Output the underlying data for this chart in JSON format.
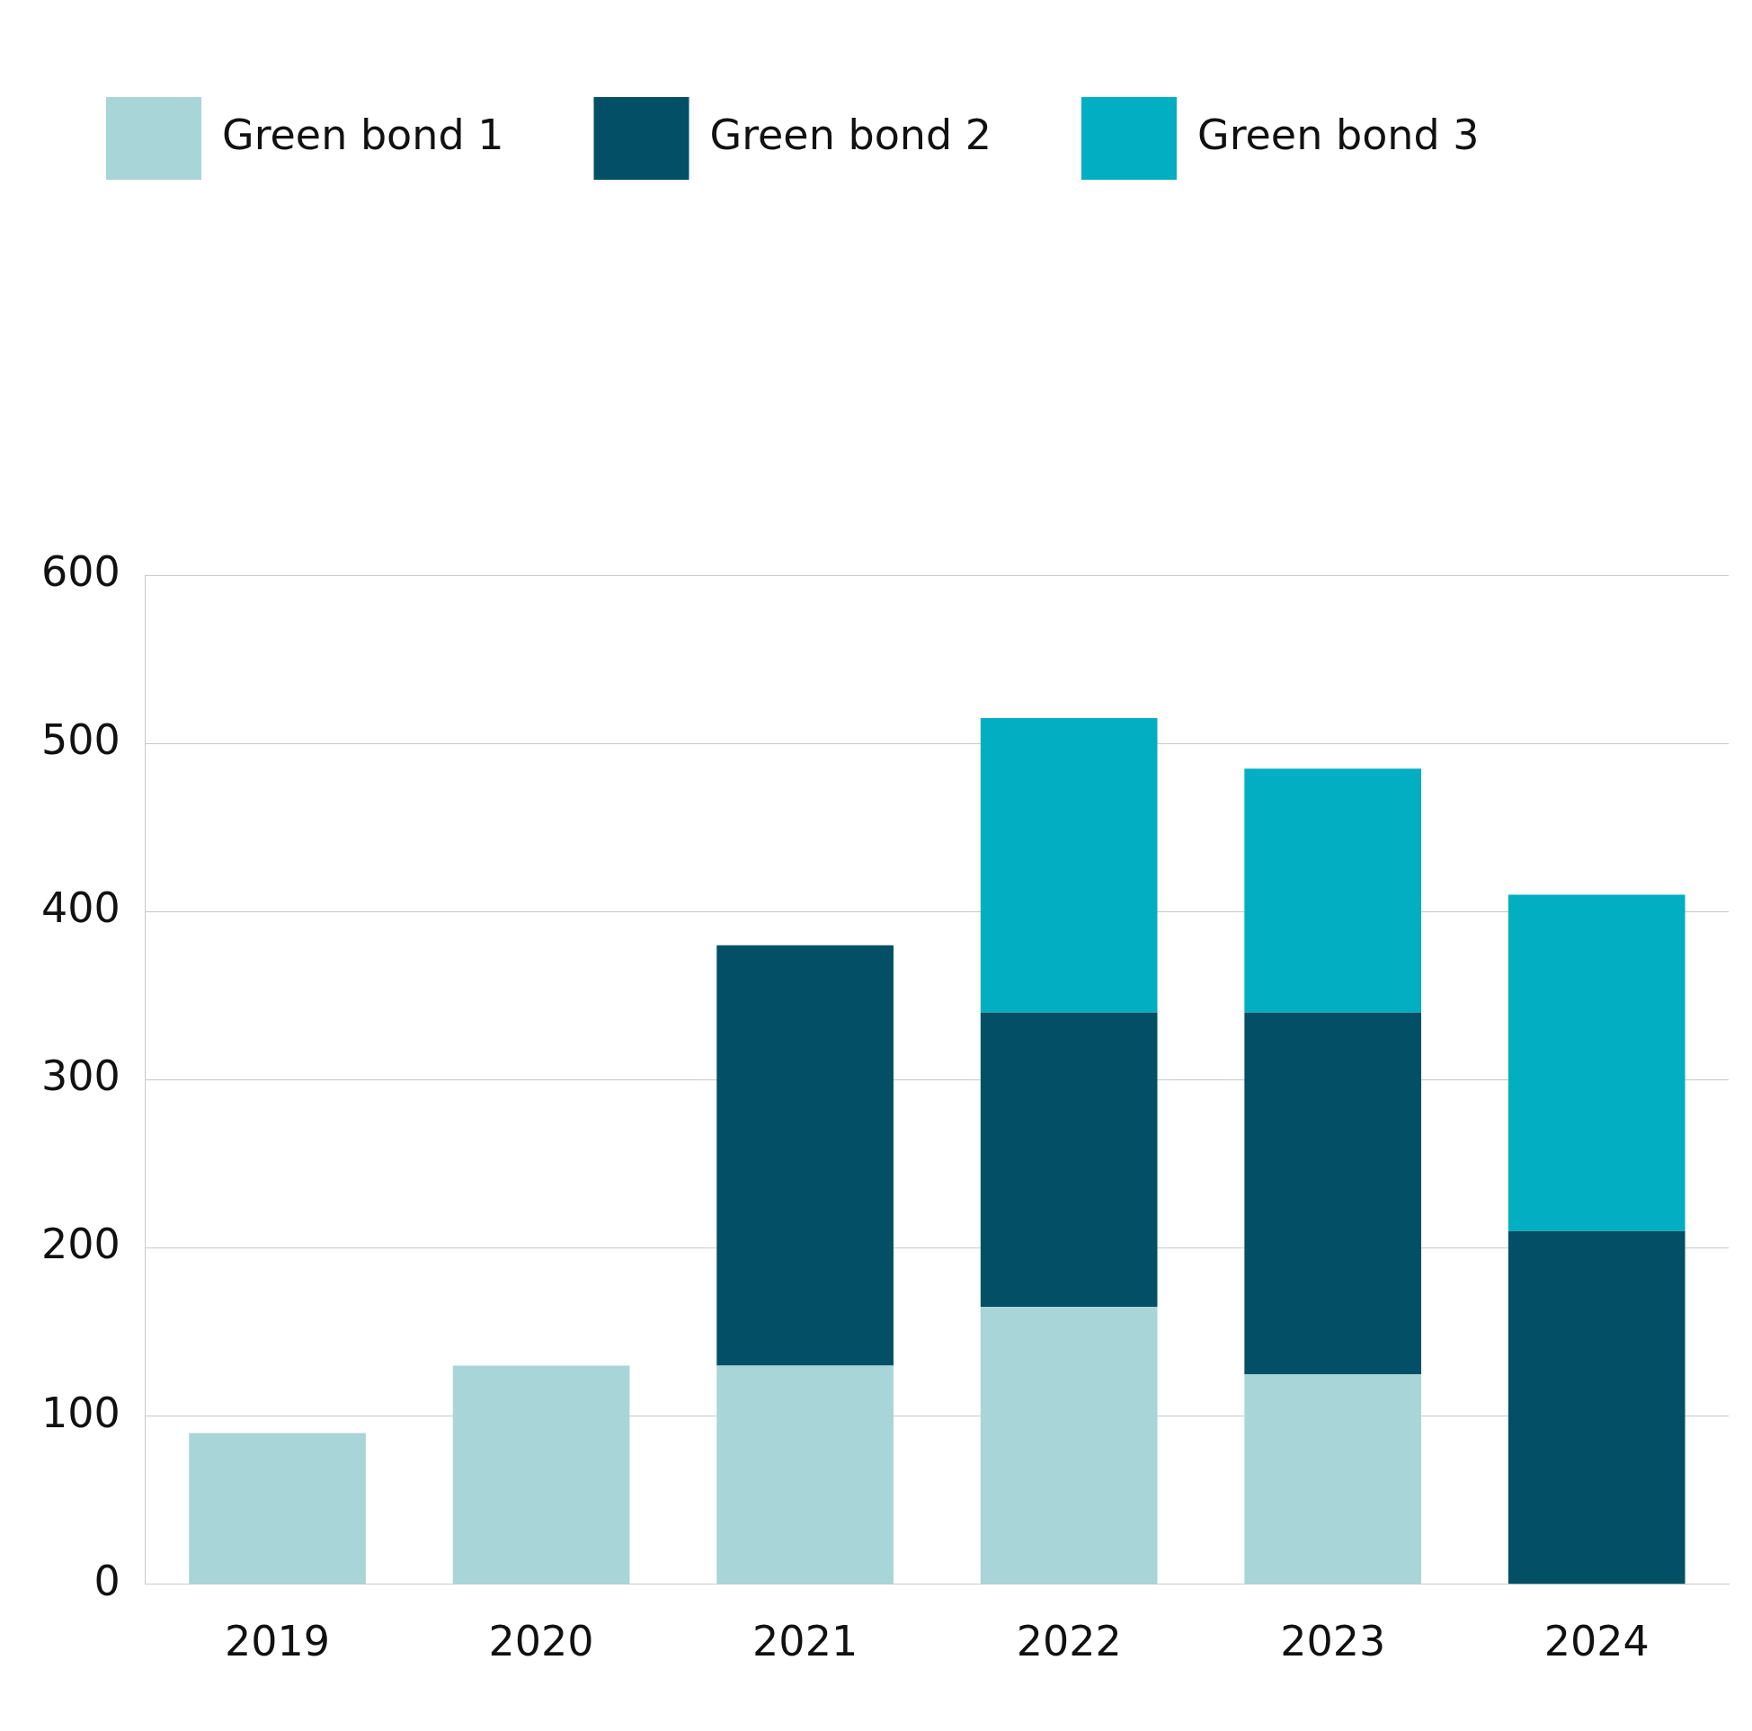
{
  "chart_data": {
    "type": "bar",
    "stacked": true,
    "categories": [
      "2019",
      "2020",
      "2021",
      "2022",
      "2023",
      "2024"
    ],
    "series": [
      {
        "name": "Green bond 1",
        "color": "#a8d5d8",
        "values": [
          90,
          130,
          130,
          165,
          125,
          null
        ]
      },
      {
        "name": "Green bond 2",
        "color": "#035066",
        "values": [
          null,
          null,
          250,
          175,
          215,
          210
        ]
      },
      {
        "name": "Green bond 3",
        "color": "#02aec1",
        "values": [
          null,
          null,
          null,
          175,
          145,
          200
        ]
      }
    ],
    "ylim": [
      0,
      600
    ],
    "yticks": [
      0,
      100,
      200,
      300,
      400,
      500,
      600
    ],
    "grid": "y",
    "legend": "top"
  }
}
